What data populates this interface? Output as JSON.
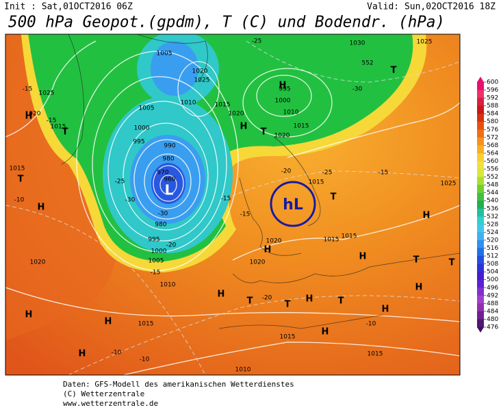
{
  "header": {
    "init": "Init : Sat,01OCT2016 06Z",
    "valid": "Valid: Sun,02OCT2016 18Z",
    "title": "500 hPa Geopot.(gpdm), T (C) und Bodendr. (hPa)"
  },
  "map": {
    "labels": [
      "H",
      "H",
      "H",
      "H",
      "H",
      "H",
      "H",
      "H",
      "H",
      "H",
      "H",
      "H",
      "H",
      "H",
      "H",
      "T",
      "T",
      "T",
      "T",
      "T",
      "T",
      "T",
      "T",
      "T",
      "T",
      "1005",
      "1005",
      "1020",
      "1025",
      "1010",
      "1015",
      "1020",
      "1005",
      "1000",
      "995",
      "990",
      "980",
      "970",
      "960",
      "980",
      "995",
      "1000",
      "1005",
      "1010",
      "1015",
      "1020",
      "1025",
      "1020",
      "1015",
      "1015",
      "995",
      "1000",
      "1010",
      "1015",
      "1020",
      "1030",
      "1025",
      "1015",
      "1020",
      "1020",
      "1015",
      "1015",
      "1015",
      "1015",
      "1010",
      "1025",
      "-25",
      "-30",
      "-15",
      "-15",
      "-25",
      "-30",
      "-30",
      "-15",
      "-15",
      "-20",
      "-25",
      "-15",
      "-10",
      "-15",
      "-10",
      "-10",
      "-10",
      "-20",
      "552",
      "-20",
      "L"
    ],
    "marker": "hL"
  },
  "colorbar": {
    "ticks": [
      600,
      596,
      592,
      588,
      584,
      580,
      576,
      572,
      568,
      564,
      560,
      556,
      552,
      548,
      544,
      540,
      536,
      532,
      528,
      524,
      520,
      516,
      512,
      508,
      504,
      500,
      496,
      492,
      488,
      484,
      480,
      476
    ],
    "colors": [
      "#e8106e",
      "#f0306a",
      "#d82040",
      "#c81818",
      "#d83010",
      "#e85010",
      "#f07010",
      "#f89020",
      "#f8b020",
      "#f8d030",
      "#f0e040",
      "#d8e838",
      "#a8e030",
      "#70d030",
      "#40c040",
      "#20b050",
      "#20c0a0",
      "#30d0d0",
      "#40c8e8",
      "#40b0f0",
      "#3090f0",
      "#2070e8",
      "#2050e0",
      "#3030d8",
      "#4020d0",
      "#6020d0",
      "#8030d0",
      "#a040c8",
      "#9030b0",
      "#702090",
      "#501870",
      "#401060"
    ]
  },
  "footer": [
    "Daten: GFS-Modell des amerikanischen Wetterdienstes",
    "(C) Wetterzentrale",
    "www.wetterzentrale.de"
  ]
}
